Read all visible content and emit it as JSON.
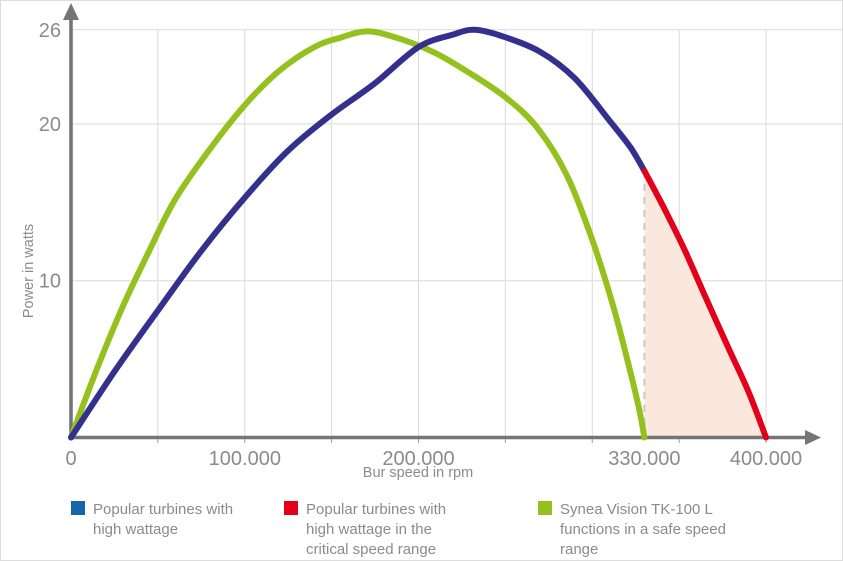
{
  "chart_data": {
    "type": "line",
    "title": "",
    "xlabel": "Bur speed in rpm",
    "ylabel": "Power in watts",
    "xlim": [
      0,
      430000
    ],
    "ylim": [
      0,
      27.5
    ],
    "grid": {
      "x_step": 50000,
      "x_max": 400000,
      "y_lines": [
        10,
        20,
        26
      ],
      "on": true
    },
    "legend_position": "bottom",
    "x_ticks": [
      {
        "value": 0,
        "label": "0"
      },
      {
        "value": 100000,
        "label": "100.000"
      },
      {
        "value": 200000,
        "label": "200.000"
      },
      {
        "value": 330000,
        "label": "330.000"
      },
      {
        "value": 400000,
        "label": "400.000"
      }
    ],
    "y_ticks": [
      {
        "value": 10,
        "label": "10"
      },
      {
        "value": 20,
        "label": "20"
      },
      {
        "value": 26,
        "label": "26"
      }
    ],
    "series": [
      {
        "name": "popular-high-wattage",
        "label": "Popular turbines with high wattage",
        "color": "#34308e",
        "legend_color": "#1565ab",
        "points": [
          [
            0,
            0
          ],
          [
            25000,
            4.2
          ],
          [
            50000,
            8.1
          ],
          [
            75000,
            11.9
          ],
          [
            100000,
            15.3
          ],
          [
            125000,
            18.3
          ],
          [
            150000,
            20.6
          ],
          [
            175000,
            22.6
          ],
          [
            200000,
            24.9
          ],
          [
            220000,
            25.7
          ],
          [
            232000,
            26
          ],
          [
            248000,
            25.6
          ],
          [
            270000,
            24.6
          ],
          [
            290000,
            22.9
          ],
          [
            310000,
            20.2
          ],
          [
            322000,
            18.5
          ],
          [
            330000,
            17
          ]
        ]
      },
      {
        "name": "critical-speed-range",
        "label": "Popular turbines with high wattage in the critical speed range",
        "color": "#e2001a",
        "legend_color": "#e2001a",
        "points": [
          [
            330000,
            17
          ],
          [
            341000,
            14.7
          ],
          [
            353000,
            12
          ],
          [
            365000,
            9
          ],
          [
            378000,
            5.8
          ],
          [
            390000,
            2.9
          ],
          [
            400000,
            0
          ]
        ]
      },
      {
        "name": "synea-vision-tk100l",
        "label": "Synea Vision TK-100 L functions in a safe speed range",
        "color": "#95c11f",
        "legend_color": "#95c11f",
        "points": [
          [
            0,
            0
          ],
          [
            15000,
            4.4
          ],
          [
            30000,
            8.4
          ],
          [
            45000,
            11.9
          ],
          [
            60000,
            15.2
          ],
          [
            80000,
            18.4
          ],
          [
            100000,
            21.2
          ],
          [
            120000,
            23.4
          ],
          [
            140000,
            24.9
          ],
          [
            155000,
            25.5
          ],
          [
            171000,
            25.9
          ],
          [
            190000,
            25.4
          ],
          [
            210000,
            24.5
          ],
          [
            230000,
            23.2
          ],
          [
            250000,
            21.7
          ],
          [
            268000,
            19.8
          ],
          [
            285000,
            16.8
          ],
          [
            300000,
            12.6
          ],
          [
            312000,
            8.4
          ],
          [
            321000,
            4.6
          ],
          [
            327000,
            1.8
          ],
          [
            330000,
            0
          ]
        ]
      }
    ],
    "critical_region": {
      "start_rpm": 330000,
      "end_rpm": 400000,
      "fill": "#fae8dd",
      "dash_color": "#c9c9c9"
    }
  },
  "legend": {
    "items": [
      {
        "label": "Popular turbines with high wattage",
        "color": "#1565ab"
      },
      {
        "label": "Popular turbines with high wattage in the critical speed range",
        "color": "#e2001a"
      },
      {
        "label": "Synea Vision TK-100 L functions in a safe speed range",
        "color": "#95c11f"
      }
    ]
  }
}
